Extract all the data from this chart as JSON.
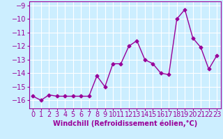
{
  "x": [
    0,
    1,
    2,
    3,
    4,
    5,
    6,
    7,
    8,
    9,
    10,
    11,
    12,
    13,
    14,
    15,
    16,
    17,
    18,
    19,
    20,
    21,
    22,
    23
  ],
  "y": [
    -15.7,
    -16.0,
    -15.6,
    -15.7,
    -15.7,
    -15.7,
    -15.7,
    -15.7,
    -14.2,
    -15.0,
    -13.3,
    -13.3,
    -12.0,
    -11.6,
    -13.0,
    -13.3,
    -14.0,
    -14.1,
    -10.0,
    -9.3,
    -11.4,
    -12.1,
    -13.7,
    -12.7
  ],
  "line_color": "#990099",
  "marker": "D",
  "marker_size": 2.5,
  "line_width": 1.0,
  "background_color": "#cceeff",
  "grid_color": "#ffffff",
  "xlabel": "Windchill (Refroidissement éolien,°C)",
  "xlabel_fontsize": 7,
  "tick_fontsize": 7,
  "ylim": [
    -16.6,
    -8.7
  ],
  "xlim": [
    -0.5,
    23.5
  ],
  "yticks": [
    -9,
    -10,
    -11,
    -12,
    -13,
    -14,
    -15,
    -16
  ],
  "xticks": [
    0,
    1,
    2,
    3,
    4,
    5,
    6,
    7,
    8,
    9,
    10,
    11,
    12,
    13,
    14,
    15,
    16,
    17,
    18,
    19,
    20,
    21,
    22,
    23
  ]
}
